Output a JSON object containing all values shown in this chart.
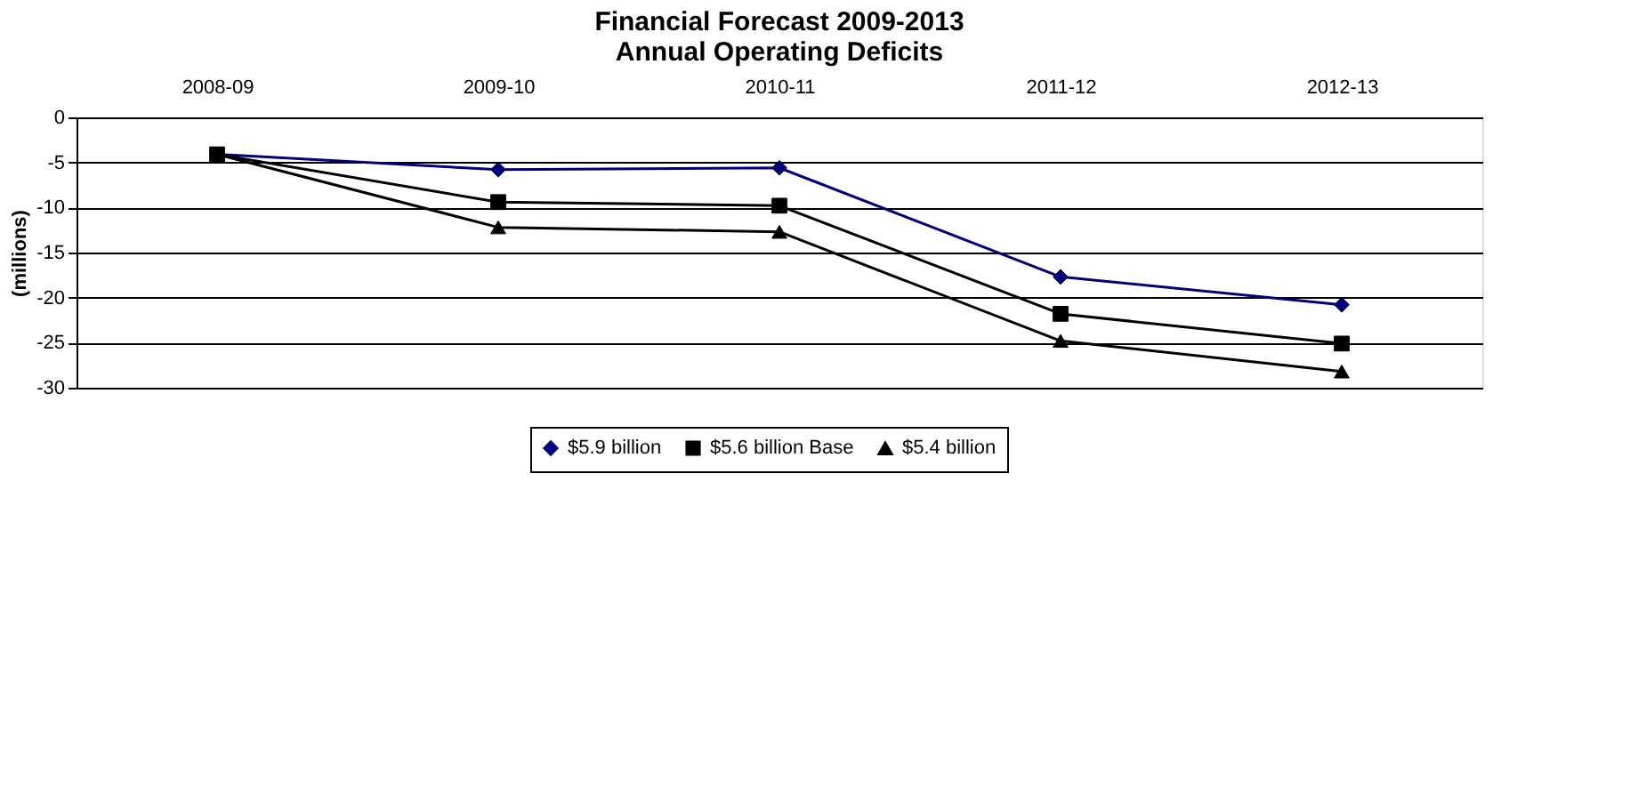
{
  "chart_data": {
    "type": "line",
    "title": [
      "Financial Forecast 2009-2013",
      "Annual Operating Deficits"
    ],
    "ylabel": "(millions)",
    "categories": [
      "2008-09",
      "2009-10",
      "2010-11",
      "2011-12",
      "2012-13"
    ],
    "series": [
      {
        "name": "$5.9 billion",
        "color": "#000080",
        "marker": "diamond",
        "values": [
          -4.1,
          -5.8,
          -5.6,
          -17.7,
          -20.8
        ]
      },
      {
        "name": "$5.6 billion Base",
        "color": "#000000",
        "marker": "square",
        "values": [
          -4.1,
          -9.4,
          -9.8,
          -21.8,
          -25.1
        ]
      },
      {
        "name": "$5.4 billion",
        "color": "#000000",
        "marker": "triangle",
        "values": [
          -4.1,
          -12.2,
          -12.7,
          -24.8,
          -28.2
        ]
      }
    ],
    "ylim": [
      -30,
      0
    ],
    "yticks": [
      -30,
      -25,
      -20,
      -15,
      -10,
      -5,
      0
    ],
    "grid": "y",
    "legend": "bottom",
    "line_style": "solid"
  }
}
